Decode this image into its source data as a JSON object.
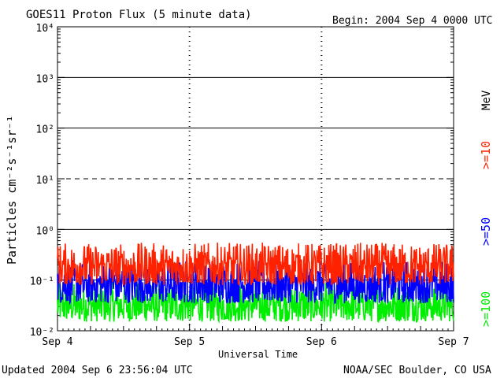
{
  "header": {
    "title": "GOES11 Proton Flux (5 minute data)",
    "begin": "Begin: 2004 Sep 4 0000 UTC"
  },
  "footer": {
    "updated": "Updated 2004 Sep  6 23:56:04 UTC",
    "credit": "NOAA/SEC Boulder, CO USA"
  },
  "colors": {
    "p10": "#ff2200",
    "p50": "#0000ff",
    "p100": "#00ee00",
    "axis": "#000000"
  },
  "chart_data": {
    "type": "line",
    "ylabel": "Particles cm⁻²s⁻¹sr⁻¹",
    "xlabel": "Universal Time",
    "yscale": "log",
    "ylim": [
      0.01,
      10000
    ],
    "ytick_labels": [
      "10⁻²",
      "10⁻¹",
      "10⁰",
      "10¹",
      "10²",
      "10³",
      "10⁴"
    ],
    "xlim_days": [
      "Sep 4",
      "Sep 7"
    ],
    "x_tick_labels": [
      "Sep 4",
      "Sep 5",
      "Sep 6",
      "Sep 7"
    ],
    "unit_label": "MeV",
    "series": [
      {
        "name": ">=10",
        "color": "#ff2200",
        "typical": 0.2,
        "min": 0.08,
        "max": 0.55
      },
      {
        "name": ">=50",
        "color": "#0000ff",
        "typical": 0.09,
        "min": 0.035,
        "max": 0.25
      },
      {
        "name": ">=100",
        "color": "#00ee00",
        "typical": 0.035,
        "min": 0.015,
        "max": 0.09
      }
    ]
  }
}
